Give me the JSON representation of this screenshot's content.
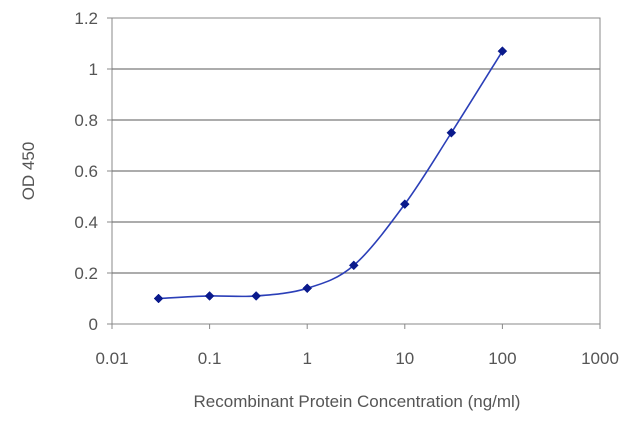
{
  "chart_data": {
    "type": "line",
    "title": "",
    "xlabel": "Recombinant Protein Concentration (ng/ml)",
    "ylabel": "OD 450",
    "xscale": "log",
    "xlim": [
      0.01,
      1000
    ],
    "ylim": [
      0,
      1.2
    ],
    "grid": "horizontal",
    "legend": "none",
    "x_ticks": [
      "0.01",
      "0.1",
      "1",
      "10",
      "100",
      "1000"
    ],
    "y_ticks": [
      "0",
      "0.2",
      "0.4",
      "0.6",
      "0.8",
      "1",
      "1.2"
    ],
    "series": [
      {
        "x": [
          0.03,
          0.1,
          0.3,
          1,
          3,
          10,
          30,
          100
        ],
        "y": [
          0.1,
          0.11,
          0.11,
          0.14,
          0.23,
          0.47,
          0.75,
          1.07
        ],
        "color": "#2b3fb8",
        "marker": "diamond",
        "marker_color": "#0a1a8c"
      }
    ]
  }
}
